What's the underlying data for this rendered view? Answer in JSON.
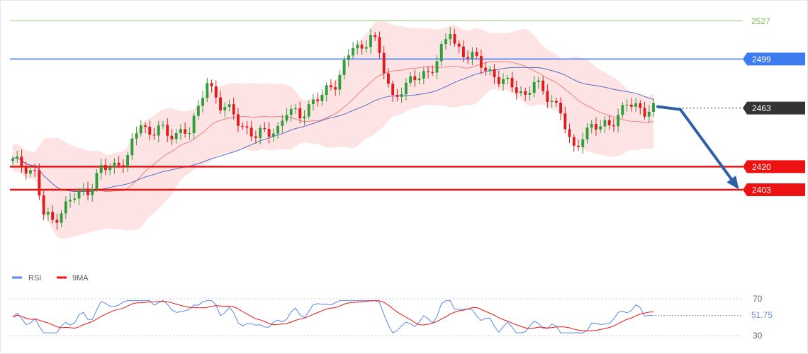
{
  "chart_data": [
    {
      "type": "candlestick",
      "price_range": [
        2350,
        2533
      ],
      "levels": [
        {
          "value": 2527,
          "label": "2527",
          "color": "#8fcf70",
          "style": "thin-line",
          "tag": "text"
        },
        {
          "value": 2499,
          "label": "2499",
          "color": "#3d7bf0",
          "style": "line",
          "tag": "box"
        },
        {
          "value": 2463,
          "label": "2463",
          "color": "#333333",
          "style": "dotted",
          "tag": "box"
        },
        {
          "value": 2420,
          "label": "2420",
          "color": "#ee1111",
          "style": "thick-line",
          "tag": "box"
        },
        {
          "value": 2403,
          "label": "2403",
          "color": "#ee1111",
          "style": "thick-line",
          "tag": "box"
        }
      ],
      "forecast_arrow": {
        "from_value": 2463,
        "to_value": 2403,
        "color": "#2f5fa8"
      },
      "candle_count": 146,
      "last_close": 2463
    },
    {
      "type": "line",
      "legend": [
        {
          "name": "RSI",
          "color": "#5a86e8"
        },
        {
          "name": "9MA",
          "color": "#ee1111"
        }
      ],
      "ylim": [
        30,
        70
      ],
      "levels": [
        70,
        30
      ],
      "y_ticks": [
        "70",
        "30"
      ],
      "current_value": "51.75",
      "current_color": "#6f8fe0"
    }
  ]
}
